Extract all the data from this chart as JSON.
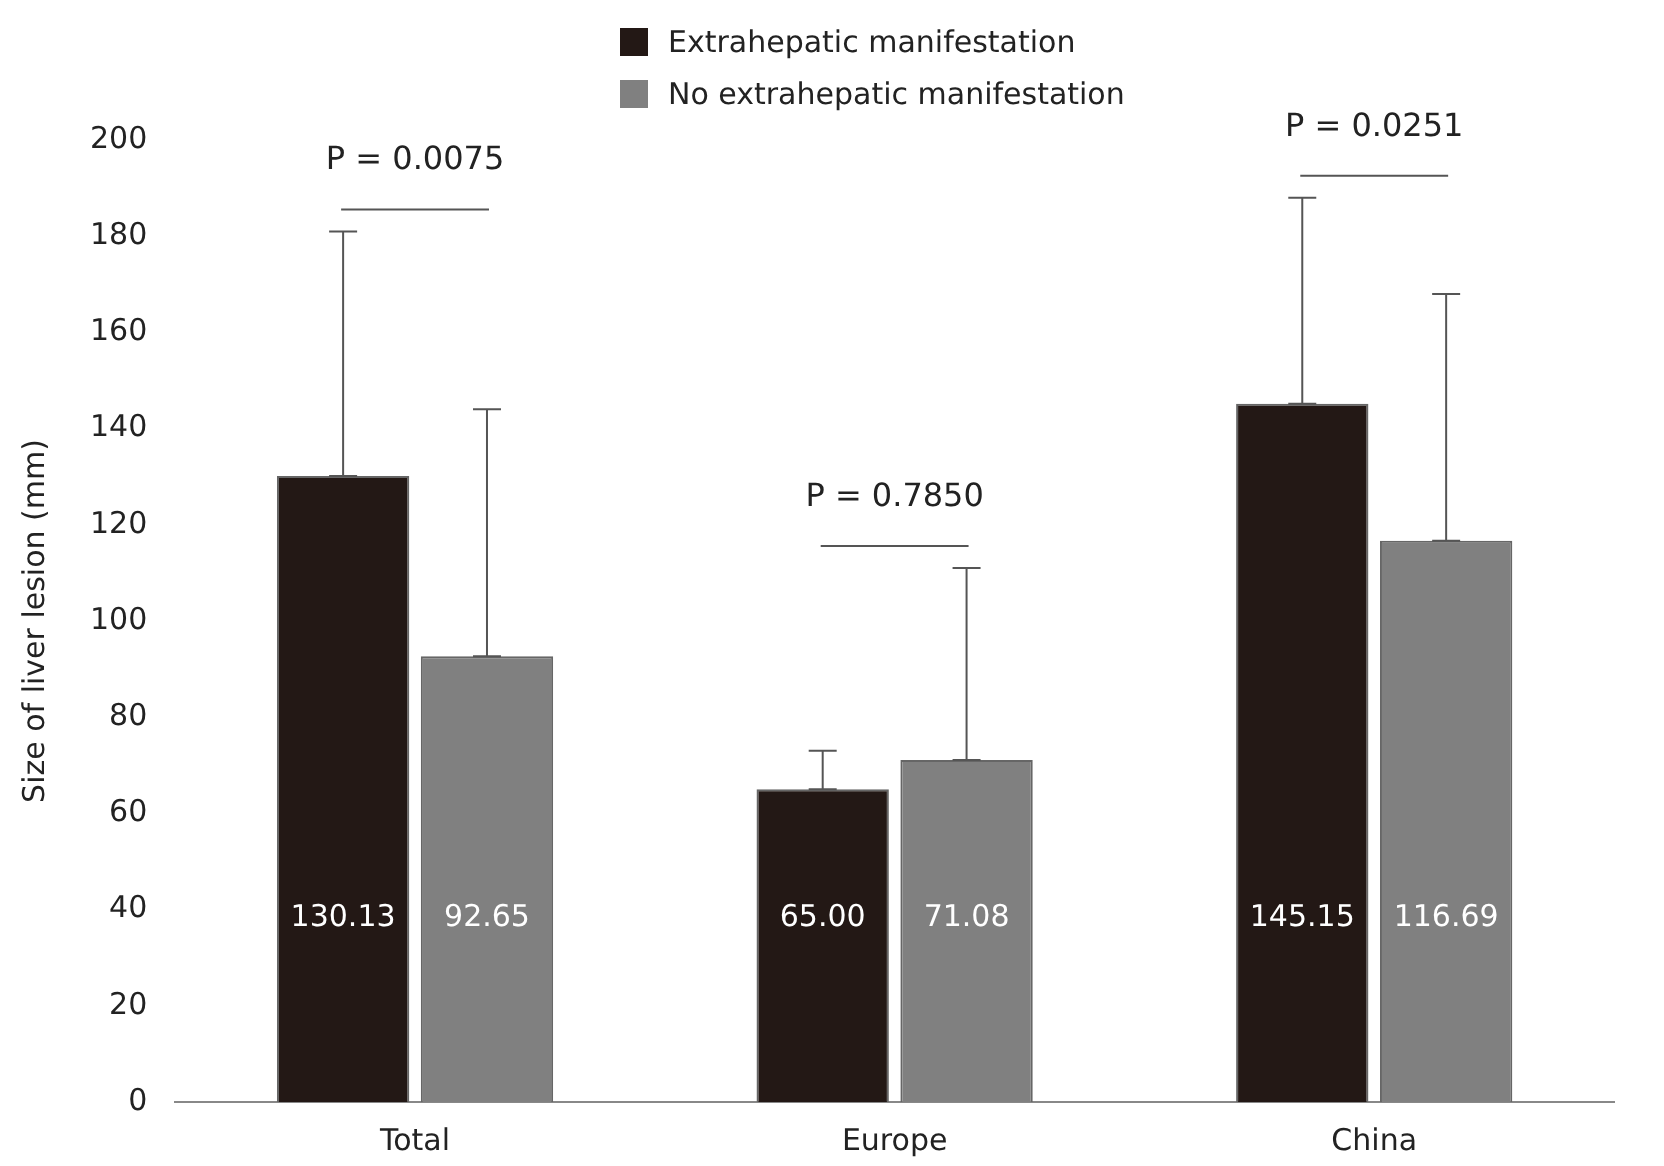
{
  "chart_data": {
    "type": "bar",
    "ylabel": "Size of liver lesion (mm)",
    "categories": [
      "Total",
      "Europe",
      "China"
    ],
    "series": [
      {
        "name": "Extrahepatic manifestation",
        "color": "#231815",
        "values": [
          130.13,
          65.0,
          145.15
        ],
        "value_labels": [
          "130.13",
          "65.00",
          "145.15"
        ],
        "errors": [
          [
            130.13,
            181
          ],
          [
            65.0,
            73
          ],
          [
            145.15,
            188
          ]
        ]
      },
      {
        "name": "No extrahepatic manifestation",
        "color": "#808080",
        "values": [
          92.65,
          71.08,
          116.69
        ],
        "value_labels": [
          "92.65",
          "71.08",
          "116.69"
        ],
        "errors": [
          [
            92.65,
            144
          ],
          [
            71.08,
            111
          ],
          [
            116.69,
            168
          ]
        ]
      }
    ],
    "ylim": [
      0,
      200
    ],
    "yticks": [
      0,
      20,
      40,
      60,
      80,
      100,
      120,
      140,
      160,
      180,
      200
    ],
    "grid": false,
    "legend": "top",
    "annotations": [
      "P = 0.0075",
      "P = 0.7850",
      "P = 0.0251"
    ]
  }
}
